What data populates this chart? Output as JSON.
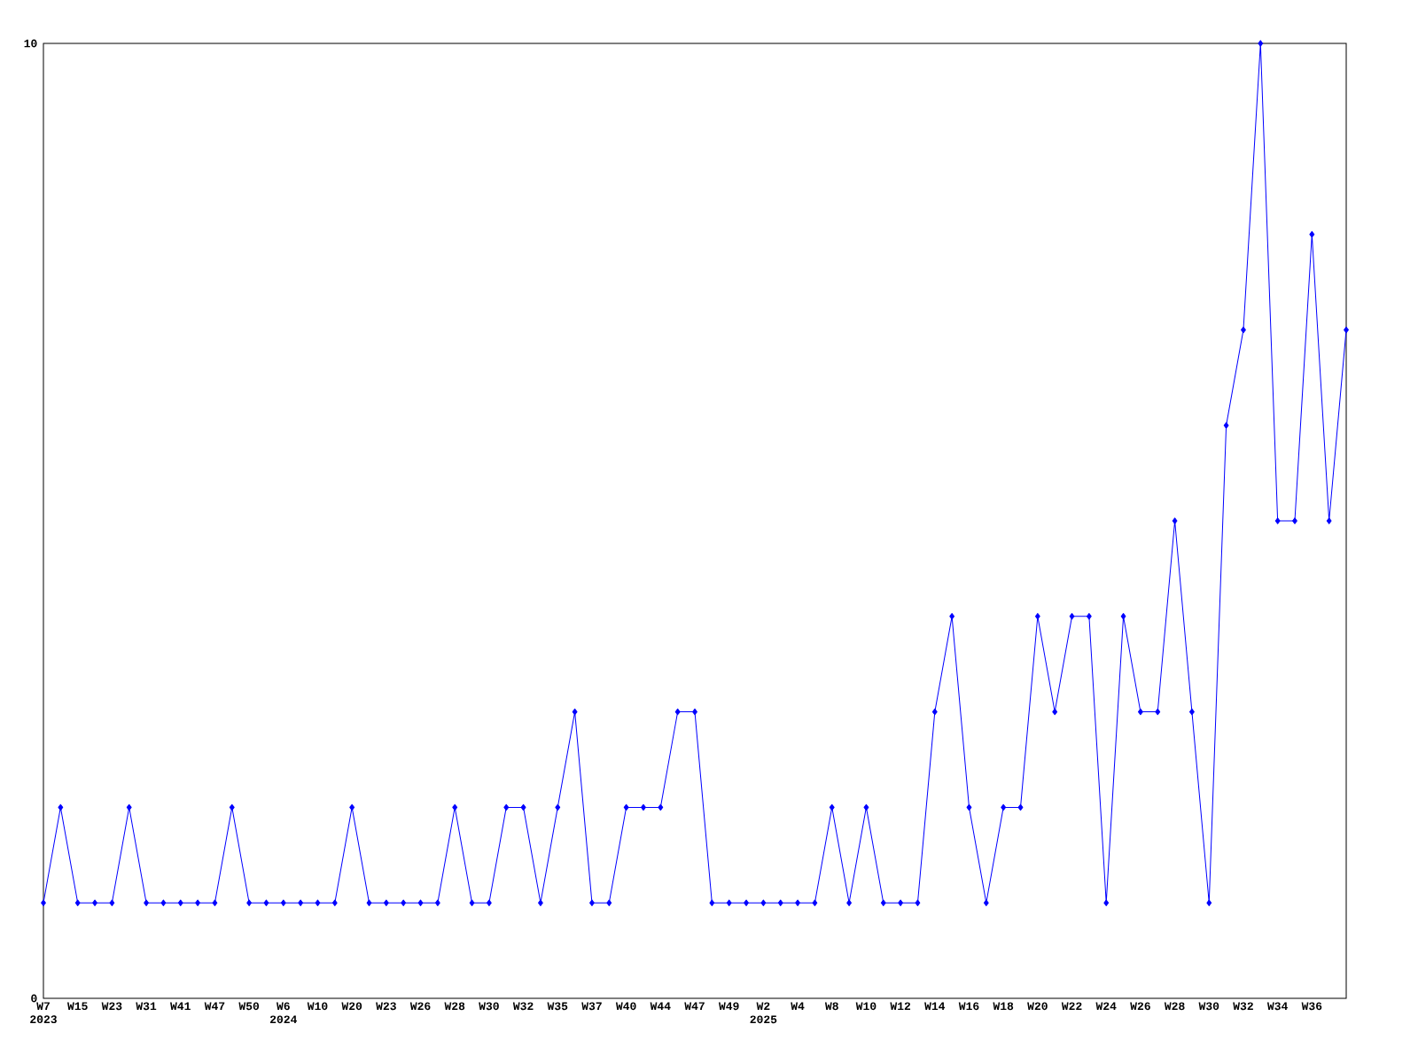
{
  "chart_data": {
    "type": "line",
    "categories": [
      "W7 2023",
      null,
      "W15",
      null,
      "W23",
      null,
      "W31",
      null,
      "W41",
      null,
      "W47",
      null,
      "W50",
      null,
      "W6 2024",
      null,
      "W10",
      null,
      "W20",
      null,
      "W23",
      null,
      "W26",
      null,
      "W28",
      null,
      "W30",
      null,
      "W32",
      null,
      "W35",
      null,
      "W37",
      null,
      "W40",
      null,
      "W44",
      null,
      "W47",
      null,
      "W49",
      null,
      "W2 2025",
      null,
      "W4",
      null,
      "W8",
      null,
      "W10",
      null,
      "W12",
      null,
      "W14",
      null,
      "W16",
      null,
      "W18",
      null,
      "W20",
      null,
      "W22",
      null,
      "W24",
      null,
      "W26",
      null,
      "W28",
      null,
      "W30",
      null,
      "W32",
      null,
      "W34",
      null,
      "W36",
      null,
      null
    ],
    "values": [
      1,
      2,
      1,
      1,
      1,
      2,
      1,
      1,
      1,
      1,
      1,
      2,
      1,
      1,
      1,
      1,
      1,
      1,
      2,
      1,
      1,
      1,
      1,
      1,
      2,
      1,
      1,
      2,
      2,
      1,
      2,
      3,
      1,
      1,
      2,
      2,
      2,
      3,
      3,
      1,
      1,
      1,
      1,
      1,
      1,
      1,
      2,
      1,
      2,
      1,
      1,
      1,
      3,
      4,
      2,
      1,
      2,
      2,
      4,
      3,
      4,
      4,
      1,
      4,
      3,
      3,
      5,
      3,
      1,
      6,
      7,
      10,
      5,
      5,
      8,
      5,
      7
    ],
    "color": "#0000ff",
    "ylim": [
      0,
      10
    ],
    "yticks": [
      0,
      10
    ],
    "marker": "diamond",
    "line_style": "solid"
  }
}
